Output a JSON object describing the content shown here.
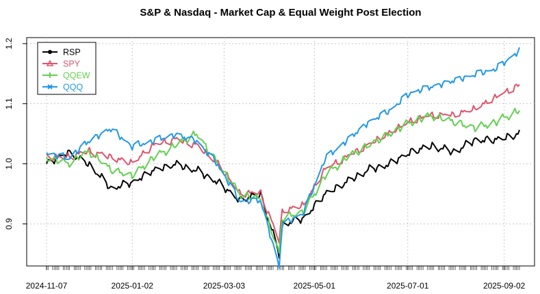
{
  "chart_data": {
    "type": "line",
    "title": "S&P & Nasdaq - Market Cap & Equal Weight Post Election",
    "xlabel": "",
    "ylabel": "",
    "ylim": [
      0.83,
      1.21
    ],
    "yticks": [
      0.9,
      1.0,
      1.1,
      1.2
    ],
    "ytick_labels": [
      "0.9",
      "1.0",
      "1.1",
      "1.2"
    ],
    "grid": true,
    "legend_position": "top-left",
    "x_dates": [
      "2024-11-07",
      "2024-11-21",
      "2024-12-05",
      "2024-12-19",
      "2025-01-02",
      "2025-01-16",
      "2025-01-30",
      "2025-02-13",
      "2025-02-27",
      "2025-03-13",
      "2025-03-27",
      "2025-04-08",
      "2025-04-10",
      "2025-04-24",
      "2025-05-08",
      "2025-05-22",
      "2025-06-05",
      "2025-06-19",
      "2025-07-03",
      "2025-07-17",
      "2025-07-31",
      "2025-08-14",
      "2025-08-28",
      "2025-09-12"
    ],
    "x_ticks": [
      "2024-11-07",
      "2025-01-02",
      "2025-03-03",
      "2025-05-01",
      "2025-07-01",
      "2025-09-02"
    ],
    "series": [
      {
        "name": "RSP",
        "color": "#000000",
        "marker": "circle",
        "values": [
          1.0,
          1.02,
          1.0,
          0.96,
          0.97,
          0.99,
          1.0,
          0.99,
          0.97,
          0.94,
          0.95,
          0.85,
          0.9,
          0.91,
          0.95,
          0.97,
          0.99,
          1.0,
          1.02,
          1.03,
          1.02,
          1.04,
          1.04,
          1.05
        ]
      },
      {
        "name": "SPY",
        "color": "#DF536B",
        "marker": "triangle",
        "values": [
          1.01,
          1.01,
          1.02,
          1.01,
          1.0,
          1.03,
          1.04,
          1.03,
          1.0,
          0.95,
          0.95,
          0.87,
          0.92,
          0.93,
          0.99,
          1.01,
          1.03,
          1.05,
          1.07,
          1.08,
          1.08,
          1.09,
          1.11,
          1.13
        ]
      },
      {
        "name": "QQEW",
        "color": "#61D04F",
        "marker": "plus",
        "values": [
          1.01,
          1.0,
          1.02,
          0.99,
          0.98,
          1.01,
          1.03,
          1.05,
          1.0,
          0.95,
          0.94,
          0.85,
          0.91,
          0.92,
          0.98,
          1.01,
          1.03,
          1.05,
          1.07,
          1.08,
          1.07,
          1.06,
          1.07,
          1.09
        ]
      },
      {
        "name": "QQQ",
        "color": "#2297E6",
        "marker": "cross",
        "values": [
          1.02,
          1.01,
          1.04,
          1.06,
          1.03,
          1.04,
          1.05,
          1.04,
          1.0,
          0.94,
          0.94,
          0.83,
          0.9,
          0.92,
          1.01,
          1.04,
          1.07,
          1.09,
          1.12,
          1.13,
          1.14,
          1.15,
          1.16,
          1.19
        ]
      }
    ]
  }
}
